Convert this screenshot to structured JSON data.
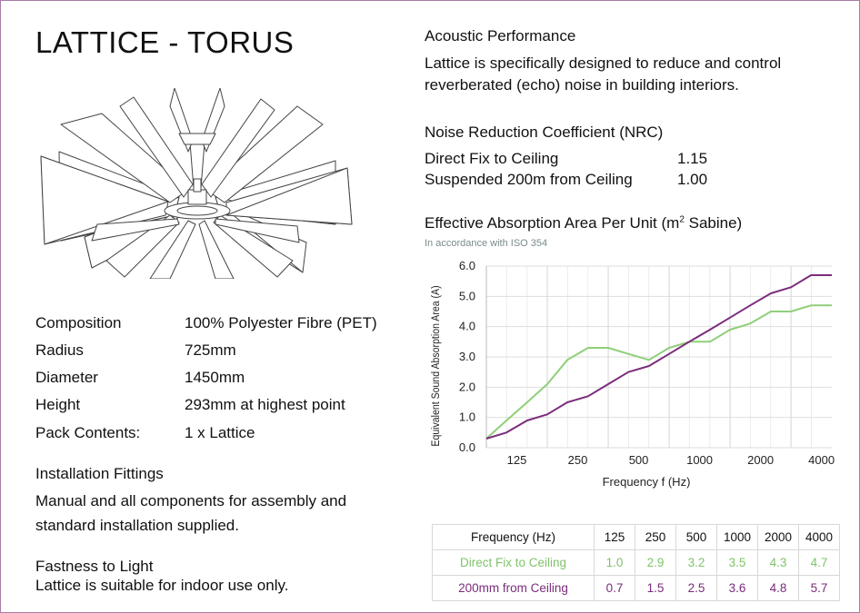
{
  "title": "LATTICE - TORUS",
  "specs": [
    {
      "key": "Composition",
      "value": "100% Polyester Fibre (PET)"
    },
    {
      "key": "Radius",
      "value": "725mm"
    },
    {
      "key": "Diameter",
      "value": "1450mm"
    },
    {
      "key": "Height",
      "value": "293mm at highest point"
    },
    {
      "key": "Pack Contents:",
      "value": "1 x  Lattice"
    }
  ],
  "installation": {
    "heading": "Installation Fittings",
    "line1": "Manual and all components for assembly and",
    "line2": "standard installation supplied."
  },
  "fastness": {
    "heading": "Fastness to Light",
    "text": "Lattice is suitable for indoor use only."
  },
  "acoustic": {
    "heading": "Acoustic Performance",
    "line1": "Lattice is specifically designed to reduce and control",
    "line2": "reverberated (echo) noise in building interiors."
  },
  "nrc": {
    "heading": "Noise Reduction Coefficient (NRC)",
    "rows": [
      {
        "label": "Direct Fix to Ceiling",
        "value": "1.15"
      },
      {
        "label": "Suspended 200m from Ceiling",
        "value": "1.00"
      }
    ]
  },
  "absorption": {
    "heading_pre": "Effective Absorption Area Per Unit (m",
    "heading_sup": "2",
    "heading_post": " Sabine)",
    "subheading": "In accordance with ISO 354"
  },
  "chart_data": {
    "type": "line",
    "xlabel": "Frequency f (Hz)",
    "ylabel": "Equivalent Sound Absorption Area (A)",
    "ylim": [
      0,
      6
    ],
    "yticks": [
      "0.0",
      "1.0",
      "2.0",
      "3.0",
      "4.0",
      "5.0",
      "6.0"
    ],
    "xtick_labels": [
      "125",
      "250",
      "500",
      "1000",
      "2000",
      "4000"
    ],
    "grid": true,
    "x_octave": [
      0,
      0.33,
      0.67,
      1,
      1.33,
      1.67,
      2,
      2.33,
      2.67,
      3,
      3.33,
      3.67,
      4,
      4.33,
      4.67,
      5,
      5.33,
      5.67
    ],
    "series": [
      {
        "name": "Direct Fix to Ceiling",
        "color": "#8fcf7a",
        "values": [
          0.3,
          0.9,
          1.5,
          2.1,
          2.9,
          3.3,
          3.3,
          3.1,
          2.9,
          3.3,
          3.5,
          3.5,
          3.9,
          4.1,
          4.5,
          4.5,
          4.7,
          4.7
        ]
      },
      {
        "name": "200mm from Ceiling",
        "color": "#7b2d7b",
        "values": [
          0.3,
          0.5,
          0.9,
          1.1,
          1.5,
          1.7,
          2.1,
          2.5,
          2.7,
          3.1,
          3.5,
          3.9,
          4.3,
          4.7,
          5.1,
          5.3,
          5.7,
          5.7
        ]
      }
    ]
  },
  "table": {
    "header": [
      "Frequency (Hz)",
      "125",
      "250",
      "500",
      "1000",
      "2000",
      "4000"
    ],
    "rows": [
      {
        "label": "Direct Fix to Ceiling",
        "values": [
          "1.0",
          "2.9",
          "3.2",
          "3.5",
          "4.3",
          "4.7"
        ]
      },
      {
        "label": "200mm from Ceiling",
        "values": [
          "0.7",
          "1.5",
          "2.5",
          "3.6",
          "4.8",
          "5.7"
        ]
      }
    ]
  }
}
